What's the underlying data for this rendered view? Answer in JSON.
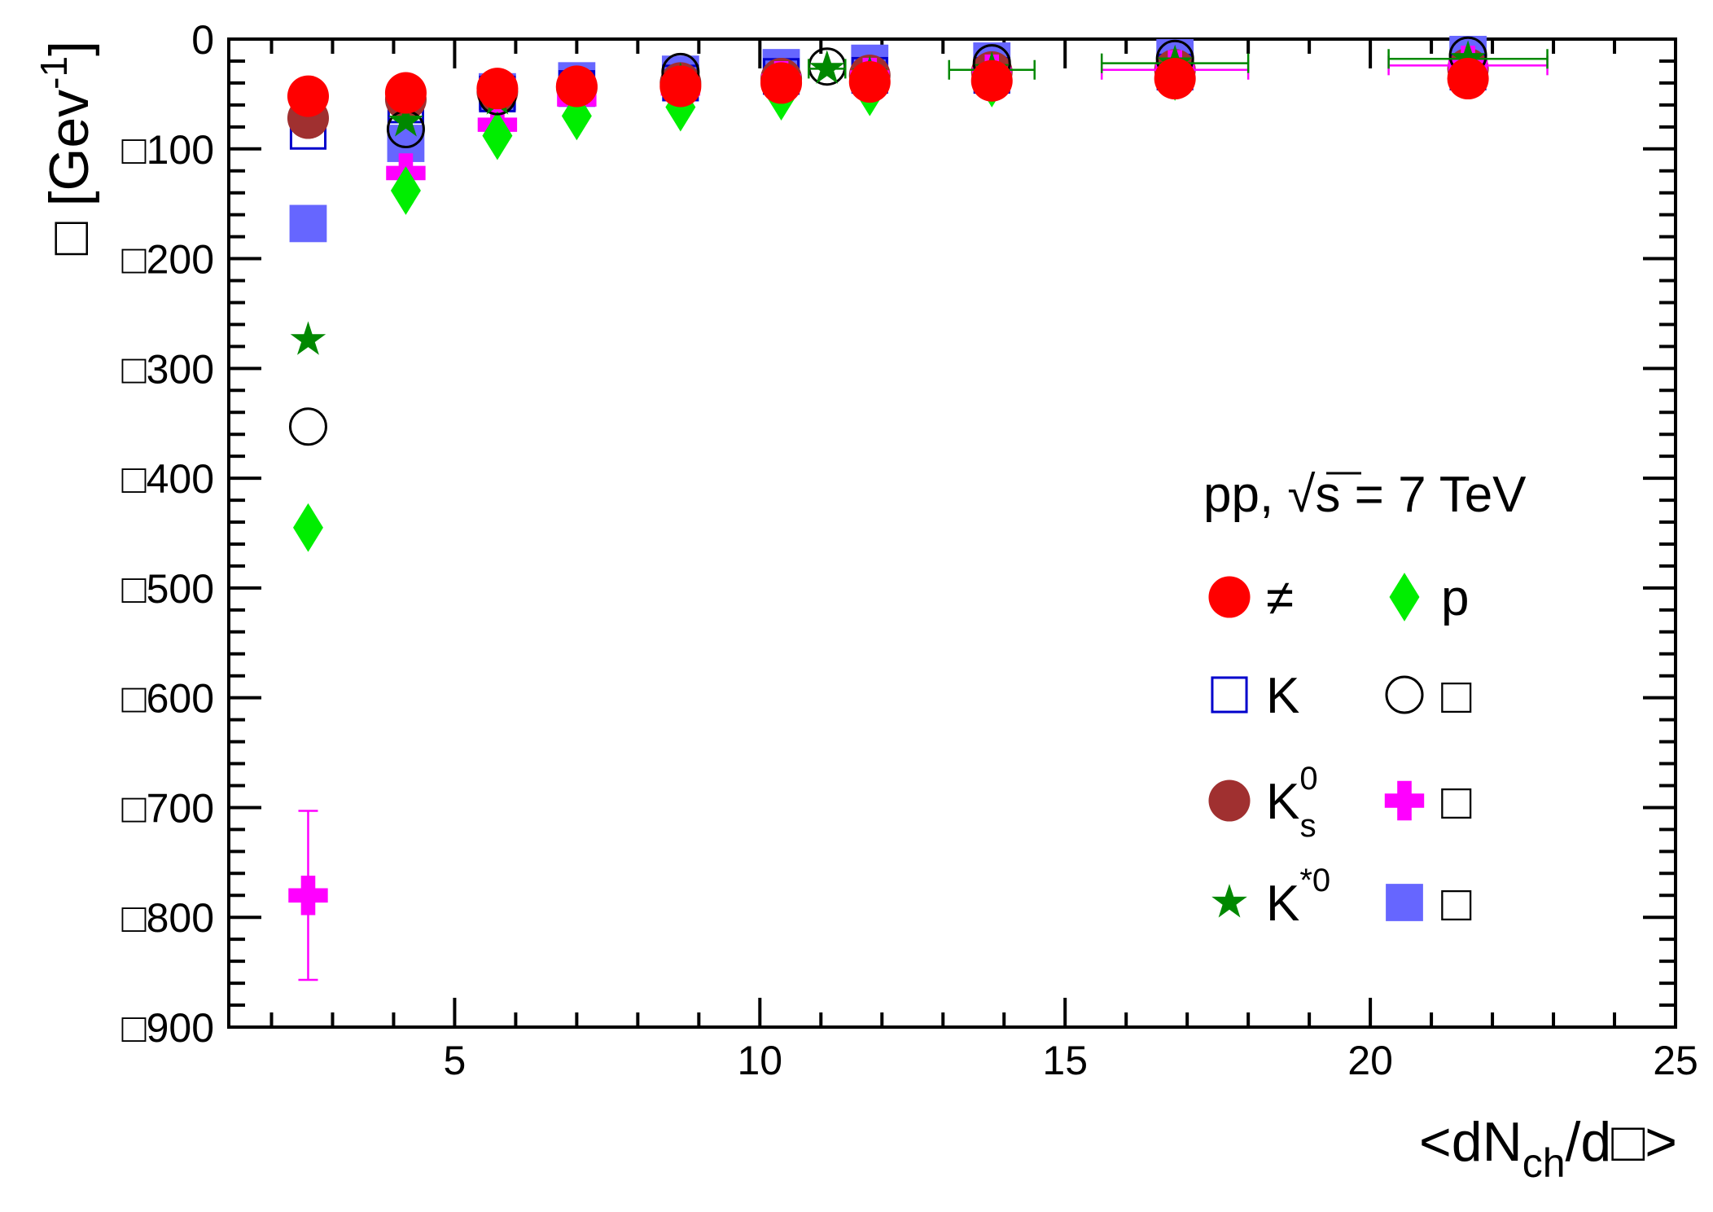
{
  "chart_data": {
    "type": "scatter",
    "title": "",
    "xlabel": "<dN_ch/d□>",
    "xlabel_parts": {
      "prefix": "<dN",
      "sub": "ch",
      "suffix": "/d□>"
    },
    "ylabel": "□ [Gev^-1]",
    "ylabel_parts": {
      "prefix": "□ [Gev",
      "sup": "-1",
      "suffix": "]"
    },
    "xlim": [
      1.3,
      25
    ],
    "ylim": [
      -900,
      0
    ],
    "x_ticks": [
      {
        "value": 5,
        "label": "5"
      },
      {
        "value": 10,
        "label": "10"
      },
      {
        "value": 15,
        "label": "15"
      },
      {
        "value": 20,
        "label": "20"
      },
      {
        "value": 25,
        "label": "25"
      }
    ],
    "y_ticks": [
      {
        "value": 0,
        "label": "0"
      },
      {
        "value": -100,
        "label": "□100"
      },
      {
        "value": -200,
        "label": "□200"
      },
      {
        "value": -300,
        "label": "□300"
      },
      {
        "value": -400,
        "label": "□400"
      },
      {
        "value": -500,
        "label": "□500"
      },
      {
        "value": -600,
        "label": "□600"
      },
      {
        "value": -700,
        "label": "□700"
      },
      {
        "value": -800,
        "label": "□800"
      },
      {
        "value": -900,
        "label": "□900"
      }
    ],
    "annotation": {
      "prefix": "pp,",
      "sqrt": "√s",
      "suffix": "= 7 TeV"
    },
    "legend_placement": "right-middle",
    "series": [
      {
        "name": "≠",
        "label_base": "≠",
        "marker": "circle",
        "filled": true,
        "color": "#ff0000",
        "points": [
          {
            "x": 2.6,
            "y": -52
          },
          {
            "x": 4.2,
            "y": -49
          },
          {
            "x": 5.7,
            "y": -45
          },
          {
            "x": 7.0,
            "y": -43
          },
          {
            "x": 8.7,
            "y": -43
          },
          {
            "x": 10.35,
            "y": -40
          },
          {
            "x": 11.8,
            "y": -39
          },
          {
            "x": 13.8,
            "y": -38
          },
          {
            "x": 16.8,
            "y": -36
          },
          {
            "x": 21.6,
            "y": -36
          }
        ]
      },
      {
        "name": "K",
        "label_base": "K",
        "marker": "square",
        "filled": false,
        "color": "#0000cc",
        "points": [
          {
            "x": 2.6,
            "y": -84
          },
          {
            "x": 4.2,
            "y": -60
          },
          {
            "x": 5.7,
            "y": -50
          },
          {
            "x": 7.0,
            "y": -45
          },
          {
            "x": 8.7,
            "y": -40
          },
          {
            "x": 10.35,
            "y": -34
          },
          {
            "x": 11.8,
            "y": -33
          },
          {
            "x": 13.8,
            "y": -33
          },
          {
            "x": 16.8,
            "y": -30
          },
          {
            "x": 21.6,
            "y": -30
          }
        ]
      },
      {
        "name": "K_s^0",
        "label_base": "K",
        "label_sub": "s",
        "label_sup": "0",
        "marker": "circle",
        "filled": true,
        "color": "#a03030",
        "points": [
          {
            "x": 2.6,
            "y": -72
          },
          {
            "x": 4.2,
            "y": -55
          },
          {
            "x": 5.7,
            "y": -48
          },
          {
            "x": 7.0,
            "y": -44
          },
          {
            "x": 8.7,
            "y": -40
          },
          {
            "x": 10.35,
            "y": -36
          },
          {
            "x": 11.8,
            "y": -33
          },
          {
            "x": 13.8,
            "y": -30
          },
          {
            "x": 16.8,
            "y": -28
          },
          {
            "x": 21.6,
            "y": -27
          }
        ]
      },
      {
        "name": "K^*0",
        "label_base": "K",
        "label_sup": "*0",
        "marker": "star",
        "filled": true,
        "color": "#008800",
        "points": [
          {
            "x": 2.6,
            "y": -274
          },
          {
            "x": 4.2,
            "y": -75
          },
          {
            "x": 5.7,
            "y": -55
          },
          {
            "x": 7.0,
            "y": -46
          },
          {
            "x": 8.7,
            "y": -38
          },
          {
            "x": 11.1,
            "y": -27,
            "xerr": 0.3
          },
          {
            "x": 11.8,
            "y": -32
          },
          {
            "x": 13.8,
            "y": -28,
            "xerr": 0.7
          },
          {
            "x": 16.8,
            "y": -22,
            "xerr": 1.2
          },
          {
            "x": 21.6,
            "y": -18,
            "xerr": 1.3
          }
        ]
      },
      {
        "name": "p",
        "label_base": "p",
        "marker": "diamond",
        "filled": true,
        "color": "#00ee00",
        "points": [
          {
            "x": 2.6,
            "y": -445
          },
          {
            "x": 4.2,
            "y": -138
          },
          {
            "x": 5.7,
            "y": -88
          },
          {
            "x": 7.0,
            "y": -70
          },
          {
            "x": 8.7,
            "y": -62
          },
          {
            "x": 10.35,
            "y": -52
          },
          {
            "x": 11.8,
            "y": -48
          },
          {
            "x": 13.8,
            "y": -40
          },
          {
            "x": 16.8,
            "y": -34
          },
          {
            "x": 21.6,
            "y": -30
          }
        ]
      },
      {
        "name": "□ (open circle)",
        "label_base": "□",
        "marker": "circle",
        "filled": false,
        "color": "#000000",
        "points": [
          {
            "x": 2.6,
            "y": -353
          },
          {
            "x": 4.2,
            "y": -82
          },
          {
            "x": 5.7,
            "y": -52
          },
          {
            "x": 7.0,
            "y": -42
          },
          {
            "x": 8.7,
            "y": -30
          },
          {
            "x": 11.1,
            "y": -25
          },
          {
            "x": 13.8,
            "y": -22
          },
          {
            "x": 16.8,
            "y": -18
          },
          {
            "x": 21.6,
            "y": -15
          }
        ]
      },
      {
        "name": "□ (cross)",
        "label_base": "□",
        "marker": "cross",
        "filled": true,
        "color": "#ff00ff",
        "points": [
          {
            "x": 2.6,
            "y": -780,
            "yerr": 77
          },
          {
            "x": 4.2,
            "y": -122
          },
          {
            "x": 5.7,
            "y": -78
          },
          {
            "x": 7.0,
            "y": -55
          },
          {
            "x": 8.7,
            "y": -45
          },
          {
            "x": 10.35,
            "y": -38
          },
          {
            "x": 11.8,
            "y": -35
          },
          {
            "x": 13.8,
            "y": -32
          },
          {
            "x": 16.8,
            "y": -28,
            "xerr": 1.2
          },
          {
            "x": 21.6,
            "y": -24,
            "xerr": 1.3
          }
        ]
      },
      {
        "name": "□ (filled square)",
        "label_base": "□",
        "marker": "square",
        "filled": true,
        "color": "#6666ff",
        "points": [
          {
            "x": 2.6,
            "y": -168
          },
          {
            "x": 4.2,
            "y": -95
          },
          {
            "x": 5.7,
            "y": -48
          },
          {
            "x": 7.0,
            "y": -38
          },
          {
            "x": 8.7,
            "y": -32
          },
          {
            "x": 10.35,
            "y": -26
          },
          {
            "x": 11.8,
            "y": -22
          },
          {
            "x": 13.8,
            "y": -20
          },
          {
            "x": 16.8,
            "y": -17
          },
          {
            "x": 21.6,
            "y": -14
          }
        ]
      }
    ]
  }
}
